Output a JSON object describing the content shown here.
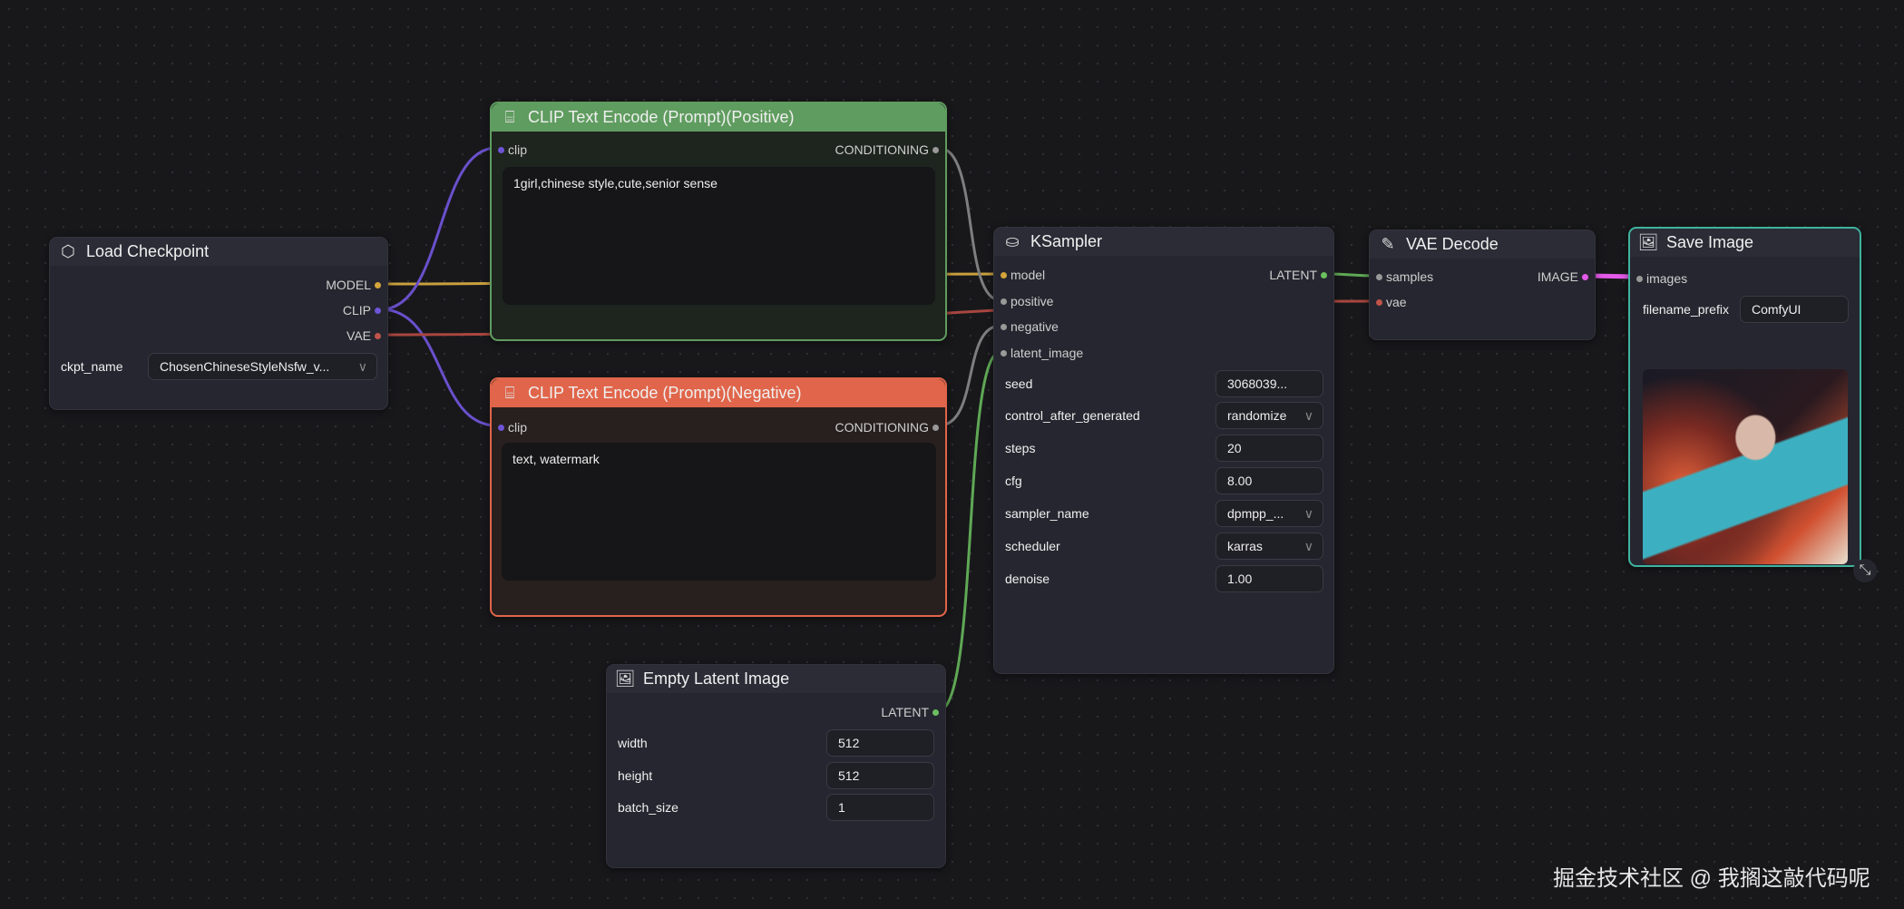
{
  "colors": {
    "model": "#d4a53a",
    "clip": "#6e55d6",
    "vae": "#c0544a",
    "conditioning": "#8a8a8a",
    "latent": "#6bbf5e",
    "image": "#e45ae8",
    "positive_header": "#5f9c5f",
    "negative_header": "#e0654a",
    "selected_border": "#3fb39e"
  },
  "load_checkpoint": {
    "title": "Load Checkpoint",
    "icon": "cube-icon",
    "outputs": [
      "MODEL",
      "CLIP",
      "VAE"
    ],
    "ckpt_label": "ckpt_name",
    "ckpt_value": "ChosenChineseStyleNsfw_v..."
  },
  "clip_positive": {
    "title": "CLIP Text Encode (Prompt)(Positive)",
    "icon": "text-scan-icon",
    "input": "clip",
    "output": "CONDITIONING",
    "text": "1girl,chinese style,cute,senior sense"
  },
  "clip_negative": {
    "title": "CLIP Text Encode (Prompt)(Negative)",
    "icon": "text-scan-icon",
    "input": "clip",
    "output": "CONDITIONING",
    "text": "text, watermark"
  },
  "ksampler": {
    "title": "KSampler",
    "icon": "flask-icon",
    "inputs": [
      "model",
      "positive",
      "negative",
      "latent_image"
    ],
    "output": "LATENT",
    "widgets": [
      {
        "label": "seed",
        "value": "3068039..."
      },
      {
        "label": "control_after_generated",
        "value": "randomize",
        "dropdown": true
      },
      {
        "label": "steps",
        "value": "20"
      },
      {
        "label": "cfg",
        "value": "8.00"
      },
      {
        "label": "sampler_name",
        "value": "dpmpp_...",
        "dropdown": true
      },
      {
        "label": "scheduler",
        "value": "karras",
        "dropdown": true
      },
      {
        "label": "denoise",
        "value": "1.00"
      }
    ]
  },
  "vae_decode": {
    "title": "VAE Decode",
    "icon": "pen-icon",
    "inputs": [
      "samples",
      "vae"
    ],
    "output": "IMAGE"
  },
  "save_image": {
    "title": "Save Image",
    "icon": "image-icon",
    "input": "images",
    "prefix_label": "filename_prefix",
    "prefix_value": "ComfyUI"
  },
  "empty_latent": {
    "title": "Empty Latent Image",
    "icon": "image-icon",
    "output": "LATENT",
    "widgets": [
      {
        "label": "width",
        "value": "512"
      },
      {
        "label": "height",
        "value": "512"
      },
      {
        "label": "batch_size",
        "value": "1"
      }
    ]
  },
  "watermark": "掘金技术社区 @ 我搁这敲代码呢"
}
